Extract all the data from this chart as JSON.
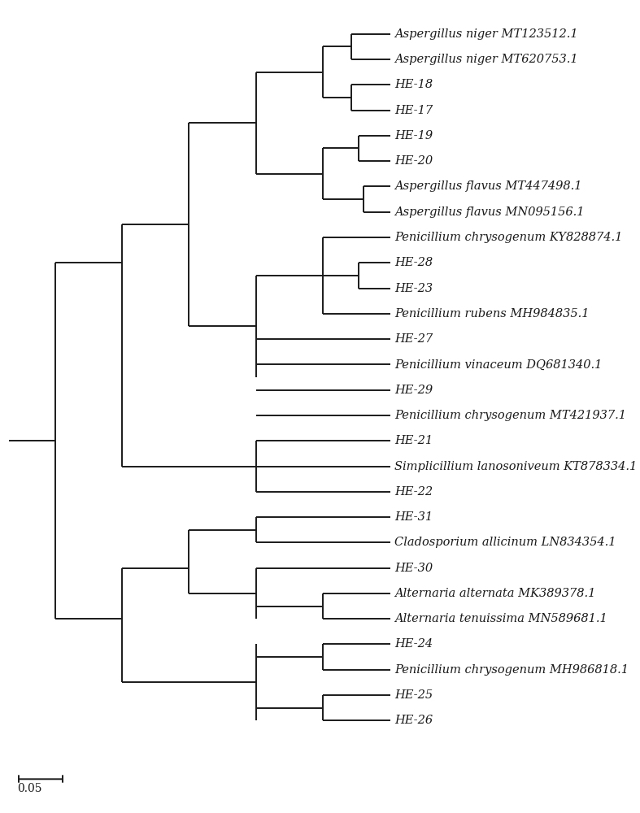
{
  "labels": [
    "Aspergillus niger MT123512.1",
    "Aspergillus niger MT620753.1",
    "HE-18",
    "HE-17",
    "HE-19",
    "HE-20",
    "Aspergillus flavus MT447498.1",
    "Aspergillus flavus MN095156.1",
    "Penicillium chrysogenum KY828874.1",
    "HE-28",
    "HE-23",
    "Penicillium rubens MH984835.1",
    "HE-27",
    "Penicillium vinaceum DQ681340.1",
    "HE-29",
    "Penicillium chrysogenum MT421937.1",
    "HE-21",
    "Simplicillium lanosoniveum KT878334.1",
    "HE-22",
    "HE-31",
    "Cladosporium allicinum LN834354.1",
    "HE-30",
    "Alternaria alternata MK389378.1",
    "Alternaria tenuissima MN589681.1",
    "HE-24",
    "Penicillium chrysogenum MH986818.1",
    "HE-25",
    "HE-26"
  ],
  "figsize": [
    7.87,
    10.0
  ],
  "dpi": 100,
  "font_size": 10.5,
  "lw": 1.4,
  "color": "#1a1a1a",
  "scale_label": "0.05"
}
